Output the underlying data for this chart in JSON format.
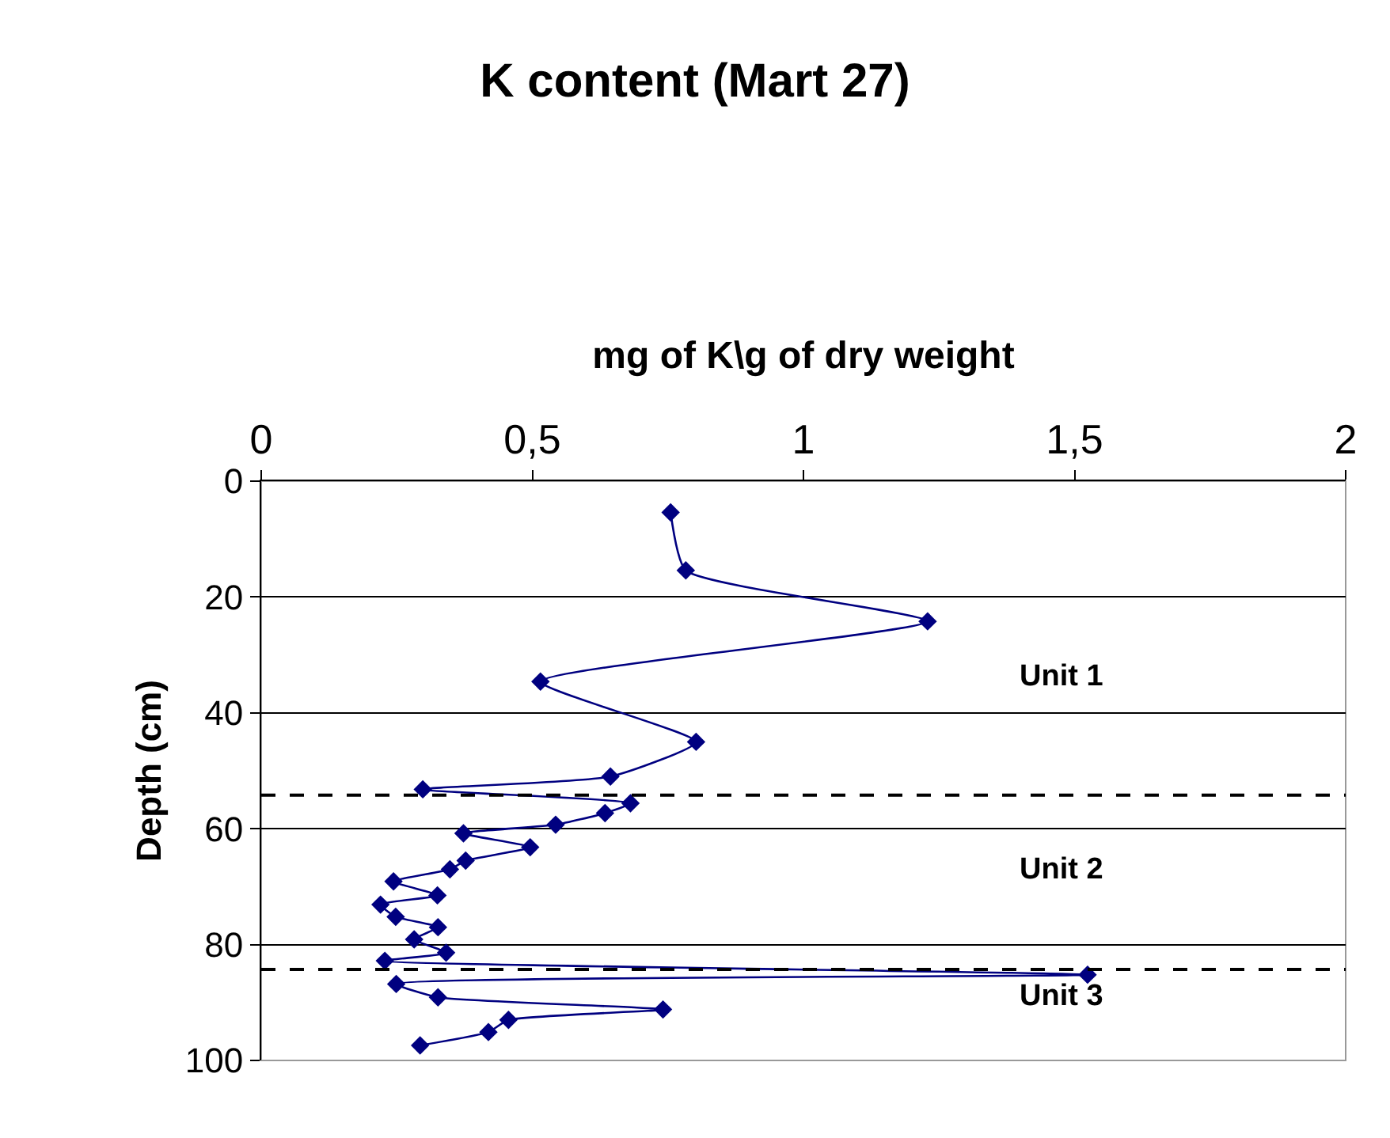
{
  "chart_data": {
    "type": "line",
    "title": "K content (Mart 27)",
    "xlabel": "mg of K\\g of dry weight",
    "ylabel": "Depth (cm)",
    "series": [
      {
        "color": "#000080",
        "x": [
          0.755,
          0.783,
          1.229,
          0.515,
          0.802,
          0.644,
          0.298,
          0.681,
          0.634,
          0.543,
          0.373,
          0.496,
          0.377,
          0.348,
          0.244,
          0.325,
          0.22,
          0.248,
          0.326,
          0.282,
          0.341,
          0.228,
          1.524,
          0.249,
          0.326,
          0.741,
          0.456,
          0.419,
          0.293
        ],
        "values": [
          5.4,
          15.4,
          24.2,
          34.6,
          45.0,
          51.0,
          53.2,
          55.6,
          57.3,
          59.3,
          60.8,
          63.2,
          65.5,
          67.0,
          69.1,
          71.5,
          73.1,
          75.2,
          77.0,
          79.1,
          81.4,
          82.8,
          85.2,
          86.8,
          89.1,
          91.2,
          93.0,
          95.1,
          97.4
        ]
      }
    ],
    "xlim": [
      0,
      2
    ],
    "xticks": [
      0,
      {
        "value": 0.5,
        "label": "0,5"
      },
      1,
      {
        "value": 1.5,
        "label": "1,5"
      },
      2
    ],
    "ylim": [
      100,
      0
    ],
    "yticks": [
      0,
      20,
      40,
      60,
      80,
      100
    ],
    "ref_lines": [
      {
        "axis": "y",
        "value": 54.2,
        "color": "#000000",
        "line_style": "dashed"
      },
      {
        "axis": "y",
        "value": 84.3,
        "color": "#000000",
        "line_style": "dashed"
      }
    ],
    "annotations": [
      "Unit 1",
      "Unit 2",
      "Unit 3"
    ],
    "grid": "y",
    "legend": false,
    "marker": "diamond",
    "line_style": "solid"
  }
}
